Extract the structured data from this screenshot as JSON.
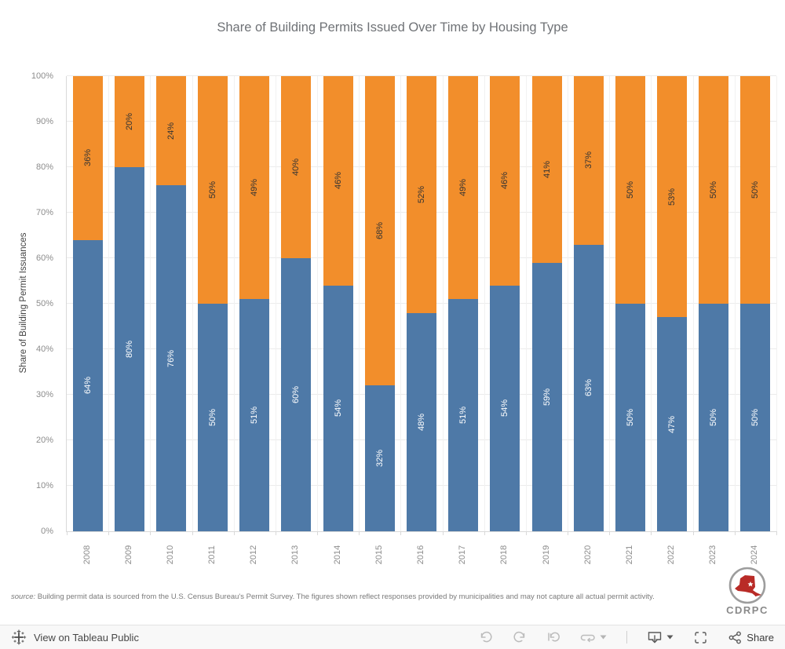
{
  "title": "Share of Building Permits Issued Over Time by Housing Type",
  "chart_data": {
    "type": "bar",
    "stacked": true,
    "title": "Share of Building Permits Issued Over Time by Housing Type",
    "ylabel": "Share of Building Permit Issuances",
    "xlabel": "",
    "ylim": [
      0,
      100
    ],
    "grid": true,
    "legend": "none",
    "y_ticks": [
      "0%",
      "10%",
      "20%",
      "30%",
      "40%",
      "50%",
      "60%",
      "70%",
      "80%",
      "90%",
      "100%"
    ],
    "categories": [
      "2008",
      "2009",
      "2010",
      "2011",
      "2012",
      "2013",
      "2014",
      "2015",
      "2016",
      "2017",
      "2018",
      "2019",
      "2020",
      "2021",
      "2022",
      "2023",
      "2024"
    ],
    "series": [
      {
        "name": "blue-series",
        "color": "#4e79a7",
        "label_color": "#ffffff",
        "values": [
          64,
          80,
          76,
          50,
          51,
          60,
          54,
          32,
          48,
          51,
          54,
          59,
          63,
          50,
          47,
          50,
          50
        ]
      },
      {
        "name": "orange-series",
        "color": "#f28e2b",
        "label_color": "#333333",
        "values": [
          36,
          20,
          24,
          50,
          49,
          40,
          46,
          68,
          52,
          49,
          46,
          41,
          37,
          50,
          53,
          50,
          50
        ]
      }
    ]
  },
  "footer": {
    "source_prefix": "source:",
    "source_text": " Building permit data is sourced from the U.S. Census Bureau's Permit Survey. The figures shown reflect responses provided by municipalities and may not capture all actual permit activity."
  },
  "logo": {
    "text": "CDRPC",
    "circle_color": "#9d9d9d",
    "state_color": "#b92b27"
  },
  "toolbar": {
    "view_label": "View on Tableau Public",
    "share_label": "Share",
    "icons": [
      "tableau-logo",
      "undo",
      "redo",
      "revert",
      "replay",
      "caret-down",
      "download",
      "fullscreen",
      "share"
    ],
    "disabled_icon_color": "#bcbcbc",
    "active_icon_color": "#5a5a5a"
  }
}
